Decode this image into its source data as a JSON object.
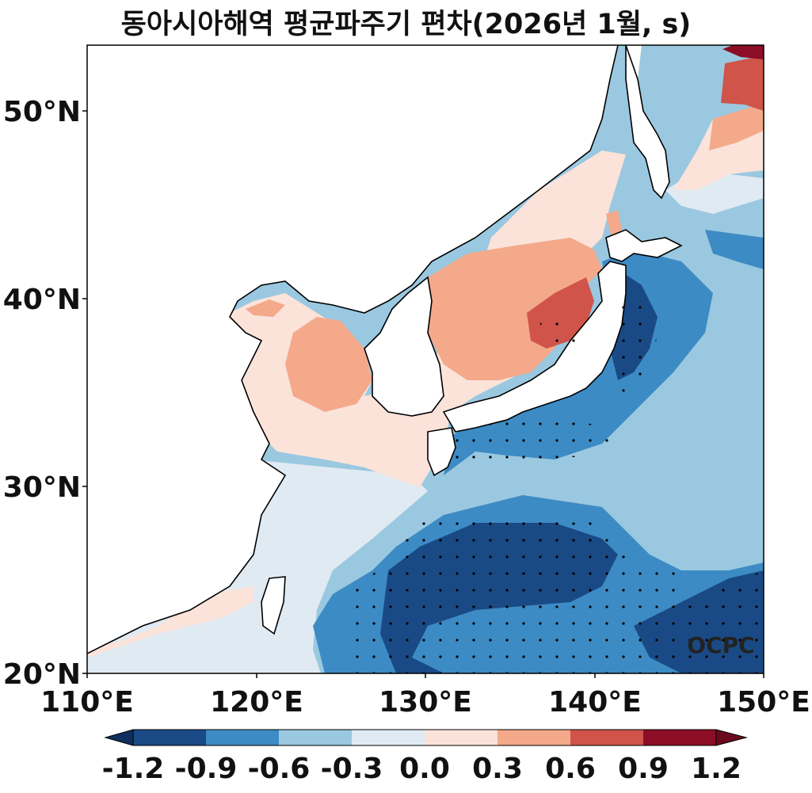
{
  "title": "동아시아해역 평균파주기 편차(2026년 1월, s)",
  "watermark": "OCPC",
  "axes": {
    "x_ticks": [
      "110°E",
      "120°E",
      "130°E",
      "140°E",
      "150°E"
    ],
    "y_ticks": [
      "50°N",
      "40°N",
      "30°N",
      "20°N"
    ],
    "lon_range": [
      110,
      150
    ],
    "lat_range": [
      20,
      53.5
    ]
  },
  "colorbar": {
    "labels": [
      "-1.2",
      "-0.9",
      "-0.6",
      "-0.3",
      "0.0",
      "0.3",
      "0.6",
      "0.9",
      "1.2"
    ],
    "colors": [
      "#1a4a85",
      "#3d8bc4",
      "#9ac8e0",
      "#e0eaf2",
      "#fbe3da",
      "#f3a98a",
      "#d0544a",
      "#8c0d26"
    ],
    "under_color": "#0e2f5e",
    "over_color": "#6b0a1f"
  },
  "colors": {
    "land": "#ffffff",
    "coast": "#000000",
    "stipple": "#000000"
  }
}
